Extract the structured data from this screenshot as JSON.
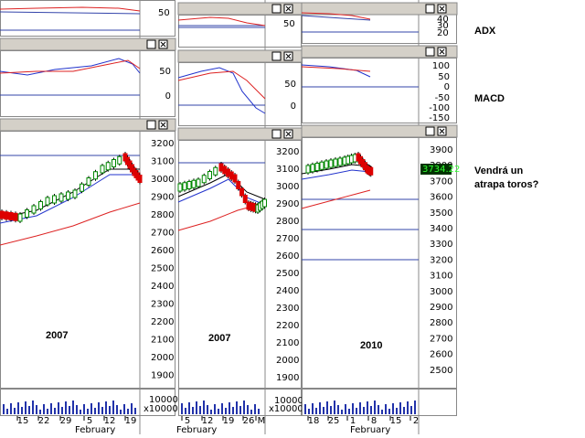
{
  "annotations": {
    "adx": "ADX",
    "macd": "MACD",
    "comment": [
      "Vendrá un",
      "atrapa toros?"
    ]
  },
  "panels": [
    {
      "year": "2007",
      "adx_ticks": [
        "50"
      ],
      "macd_ticks": [
        "50",
        "0"
      ],
      "price_ticks": [
        "3200",
        "3100",
        "3000",
        "2900",
        "2800",
        "2700",
        "2600",
        "2500",
        "2400",
        "2300",
        "2200",
        "2100",
        "2000",
        "1900"
      ],
      "volume_ticks": [
        "10000",
        "x100000"
      ],
      "dates": [
        "15",
        "22",
        "29",
        "5",
        "12",
        "19"
      ],
      "month": "February"
    },
    {
      "year": "2007",
      "adx_ticks": [
        "50"
      ],
      "macd_ticks": [
        "50",
        "0"
      ],
      "price_ticks": [
        "3200",
        "3100",
        "3000",
        "2900",
        "2800",
        "2700",
        "2600",
        "2500",
        "2400",
        "2300",
        "2200",
        "2100",
        "2000",
        "1900"
      ],
      "volume_ticks": [
        "10000",
        "x100000"
      ],
      "dates": [
        "5",
        "12",
        "19",
        "26",
        "M"
      ],
      "month": "February"
    },
    {
      "year": "2010",
      "adx_ticks": [
        "40",
        "30",
        "20"
      ],
      "macd_ticks": [
        "100",
        "50",
        "0",
        "-50",
        "-100",
        "-150"
      ],
      "price_ticks": [
        "3900",
        "3800",
        "3700",
        "3600",
        "3500",
        "3400",
        "3300",
        "3200",
        "3100",
        "3000",
        "2900",
        "2800",
        "2700",
        "2600",
        "2500"
      ],
      "price_tag": "3734.22",
      "dates": [
        "18",
        "25",
        "1",
        "8",
        "15",
        "2"
      ],
      "month": "February"
    }
  ]
}
